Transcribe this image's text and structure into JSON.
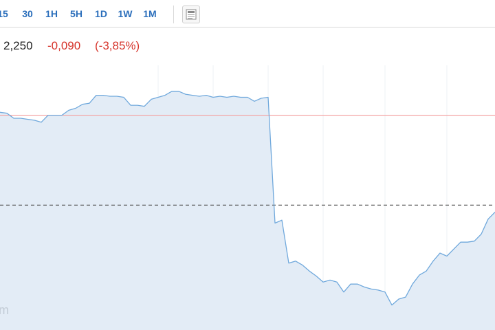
{
  "toolbar": {
    "periods": [
      "15",
      "30",
      "1H",
      "5H",
      "1D",
      "1W",
      "1M"
    ]
  },
  "quote": {
    "price": "2,250",
    "change": "-0,090",
    "change_percent": "(-3,85%)"
  },
  "chart_data": {
    "type": "area",
    "values": [
      2.343,
      2.342,
      2.337,
      2.337,
      2.336,
      2.335,
      2.333,
      2.34,
      2.34,
      2.34,
      2.345,
      2.347,
      2.351,
      2.352,
      2.36,
      2.36,
      2.359,
      2.359,
      2.358,
      2.35,
      2.35,
      2.349,
      2.356,
      2.358,
      2.36,
      2.364,
      2.364,
      2.361,
      2.36,
      2.359,
      2.36,
      2.358,
      2.359,
      2.358,
      2.359,
      2.358,
      2.358,
      2.354,
      2.357,
      2.358,
      2.232,
      2.235,
      2.192,
      2.194,
      2.19,
      2.184,
      2.179,
      2.173,
      2.175,
      2.173,
      2.163,
      2.171,
      2.171,
      2.168,
      2.166,
      2.165,
      2.163,
      2.15,
      2.156,
      2.158,
      2.171,
      2.18,
      2.184,
      2.194,
      2.202,
      2.199,
      2.206,
      2.213,
      2.213,
      2.214,
      2.221,
      2.236,
      2.243
    ],
    "ylim": [
      2.125,
      2.39
    ],
    "color": "#6fa8dc",
    "fill": "#e3ecf6",
    "reference_lines": [
      {
        "value": 2.34,
        "color": "#f3a3a3",
        "style": "solid"
      },
      {
        "value": 2.25,
        "color": "#555555",
        "style": "dashed"
      }
    ]
  },
  "watermark": "m"
}
